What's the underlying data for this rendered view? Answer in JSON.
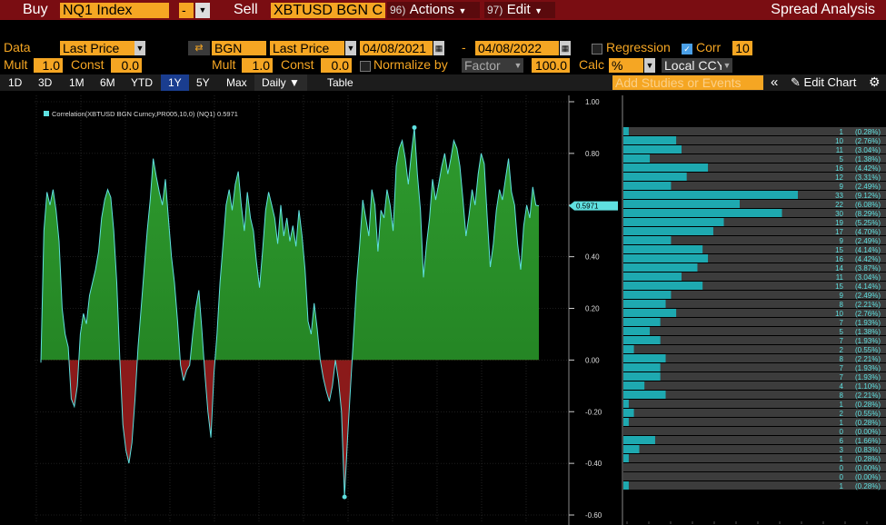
{
  "header": {
    "buy_label": "Buy",
    "ticker1": "NQ1 Index",
    "dash": "-",
    "sell_label": "Sell",
    "ticker2": "XBTUSD BGN C",
    "actions_num": "96)",
    "actions_label": "Actions",
    "edit_num": "97)",
    "edit_label": "Edit",
    "title": "Spread Analysis"
  },
  "row2": {
    "data_label": "Data",
    "data_value": "Last Price",
    "source": "BGN",
    "source_field": "Last Price",
    "start_date": "04/08/2021",
    "dash": "-",
    "end_date": "04/08/2022",
    "regression_label": "Regression",
    "corr_label": "Corr",
    "corr_value": "10"
  },
  "row3": {
    "mult_label": "Mult",
    "mult_value": "1.0",
    "const_label": "Const",
    "const_value": "0.0",
    "mult2_label": "Mult",
    "mult2_value": "1.0",
    "const2_label": "Const",
    "const2_value": "0.0",
    "normalize_label": "Normalize by",
    "factor_label": "Factor",
    "factor_value": "100.0",
    "calc_label": "Calc",
    "calc_value": "%",
    "ccy_label": "Local CCY"
  },
  "tabs": {
    "items": [
      "1D",
      "3D",
      "1M",
      "6M",
      "YTD",
      "1Y",
      "5Y",
      "Max"
    ],
    "active": "1Y",
    "daily": "Daily ▼",
    "table": "Table",
    "studies_placeholder": "Add Studies or Events",
    "collapse": "«",
    "edit_chart": "Edit Chart",
    "gear": "⚙"
  },
  "colors": {
    "positive_fill": "#1f7a1f",
    "negative_fill": "#8b1a1a",
    "line": "#5fe0e0",
    "hist_cyan": "#1ea9b0",
    "hist_gray": "#3c3c3c",
    "header_red": "#7a0d12",
    "orange": "#f5a623"
  },
  "chart_data": {
    "type": "area",
    "legend": "Correlation(XBTUSD BGN Curncy,PR005,10,0) (NQ1) 0.5971",
    "last_value": 0.5971,
    "last_label": "0.5971",
    "ylim": [
      -0.6,
      1.0
    ],
    "yticks": [
      "1.00",
      "0.80",
      "0.60",
      "0.40",
      "0.20",
      "0.00",
      "-0.20",
      "-0.40",
      "-0.60"
    ],
    "values": [
      -0.01,
      0.5,
      0.65,
      0.6,
      0.66,
      0.58,
      0.46,
      0.2,
      0.1,
      0.05,
      -0.15,
      -0.18,
      -0.1,
      0.1,
      0.18,
      0.14,
      0.25,
      0.3,
      0.35,
      0.42,
      0.55,
      0.62,
      0.66,
      0.63,
      0.5,
      0.3,
      0.0,
      -0.25,
      -0.35,
      -0.4,
      -0.32,
      -0.15,
      0.05,
      0.2,
      0.35,
      0.5,
      0.62,
      0.78,
      0.71,
      0.65,
      0.6,
      0.7,
      0.55,
      0.4,
      0.3,
      0.15,
      -0.02,
      -0.08,
      -0.04,
      -0.02,
      0.1,
      0.2,
      0.27,
      0.12,
      -0.05,
      -0.2,
      -0.3,
      -0.05,
      0.1,
      0.3,
      0.45,
      0.6,
      0.66,
      0.58,
      0.68,
      0.73,
      0.6,
      0.5,
      0.65,
      0.55,
      0.5,
      0.38,
      0.28,
      0.42,
      0.58,
      0.65,
      0.6,
      0.55,
      0.45,
      0.6,
      0.48,
      0.55,
      0.46,
      0.52,
      0.44,
      0.58,
      0.48,
      0.35,
      0.15,
      0.1,
      0.22,
      0.12,
      0.0,
      -0.07,
      -0.12,
      -0.16,
      -0.1,
      0.0,
      -0.08,
      -0.2,
      -0.53,
      -0.3,
      -0.1,
      0.1,
      0.3,
      0.45,
      0.62,
      0.55,
      0.48,
      0.66,
      0.6,
      0.42,
      0.58,
      0.55,
      0.66,
      0.6,
      0.5,
      0.75,
      0.82,
      0.85,
      0.78,
      0.68,
      0.8,
      0.9,
      0.72,
      0.58,
      0.32,
      0.45,
      0.55,
      0.7,
      0.62,
      0.68,
      0.75,
      0.8,
      0.72,
      0.78,
      0.85,
      0.82,
      0.75,
      0.62,
      0.48,
      0.56,
      0.66,
      0.6,
      0.72,
      0.8,
      0.76,
      0.55,
      0.36,
      0.45,
      0.58,
      0.66,
      0.62,
      0.7,
      0.78,
      0.65,
      0.6,
      0.45,
      0.35,
      0.52,
      0.6,
      0.55,
      0.67,
      0.6,
      0.5971
    ],
    "histogram": [
      {
        "count": 1,
        "pct": "(0.28%)",
        "val": 0.28
      },
      {
        "count": 10,
        "pct": "(2.76%)",
        "val": 2.76
      },
      {
        "count": 11,
        "pct": "(3.04%)",
        "val": 3.04
      },
      {
        "count": 5,
        "pct": "(1.38%)",
        "val": 1.38
      },
      {
        "count": 16,
        "pct": "(4.42%)",
        "val": 4.42
      },
      {
        "count": 12,
        "pct": "(3.31%)",
        "val": 3.31
      },
      {
        "count": 9,
        "pct": "(2.49%)",
        "val": 2.49
      },
      {
        "count": 33,
        "pct": "(9.12%)",
        "val": 9.12
      },
      {
        "count": 22,
        "pct": "(6.08%)",
        "val": 6.08
      },
      {
        "count": 30,
        "pct": "(8.29%)",
        "val": 8.29
      },
      {
        "count": 19,
        "pct": "(5.25%)",
        "val": 5.25
      },
      {
        "count": 17,
        "pct": "(4.70%)",
        "val": 4.7
      },
      {
        "count": 9,
        "pct": "(2.49%)",
        "val": 2.49
      },
      {
        "count": 15,
        "pct": "(4.14%)",
        "val": 4.14
      },
      {
        "count": 16,
        "pct": "(4.42%)",
        "val": 4.42
      },
      {
        "count": 14,
        "pct": "(3.87%)",
        "val": 3.87
      },
      {
        "count": 11,
        "pct": "(3.04%)",
        "val": 3.04
      },
      {
        "count": 15,
        "pct": "(4.14%)",
        "val": 4.14
      },
      {
        "count": 9,
        "pct": "(2.49%)",
        "val": 2.49
      },
      {
        "count": 8,
        "pct": "(2.21%)",
        "val": 2.21
      },
      {
        "count": 10,
        "pct": "(2.76%)",
        "val": 2.76
      },
      {
        "count": 7,
        "pct": "(1.93%)",
        "val": 1.93
      },
      {
        "count": 5,
        "pct": "(1.38%)",
        "val": 1.38
      },
      {
        "count": 7,
        "pct": "(1.93%)",
        "val": 1.93
      },
      {
        "count": 2,
        "pct": "(0.55%)",
        "val": 0.55
      },
      {
        "count": 8,
        "pct": "(2.21%)",
        "val": 2.21
      },
      {
        "count": 7,
        "pct": "(1.93%)",
        "val": 1.93
      },
      {
        "count": 7,
        "pct": "(1.93%)",
        "val": 1.93
      },
      {
        "count": 4,
        "pct": "(1.10%)",
        "val": 1.1
      },
      {
        "count": 8,
        "pct": "(2.21%)",
        "val": 2.21
      },
      {
        "count": 1,
        "pct": "(0.28%)",
        "val": 0.28
      },
      {
        "count": 2,
        "pct": "(0.55%)",
        "val": 0.55
      },
      {
        "count": 1,
        "pct": "(0.28%)",
        "val": 0.28
      },
      {
        "count": 0,
        "pct": "(0.00%)",
        "val": 0
      },
      {
        "count": 6,
        "pct": "(1.66%)",
        "val": 1.66
      },
      {
        "count": 3,
        "pct": "(0.83%)",
        "val": 0.83
      },
      {
        "count": 1,
        "pct": "(0.28%)",
        "val": 0.28
      },
      {
        "count": 0,
        "pct": "(0.00%)",
        "val": 0
      },
      {
        "count": 0,
        "pct": "(0.00%)",
        "val": 0
      },
      {
        "count": 1,
        "pct": "(0.28%)",
        "val": 0.28
      }
    ]
  }
}
